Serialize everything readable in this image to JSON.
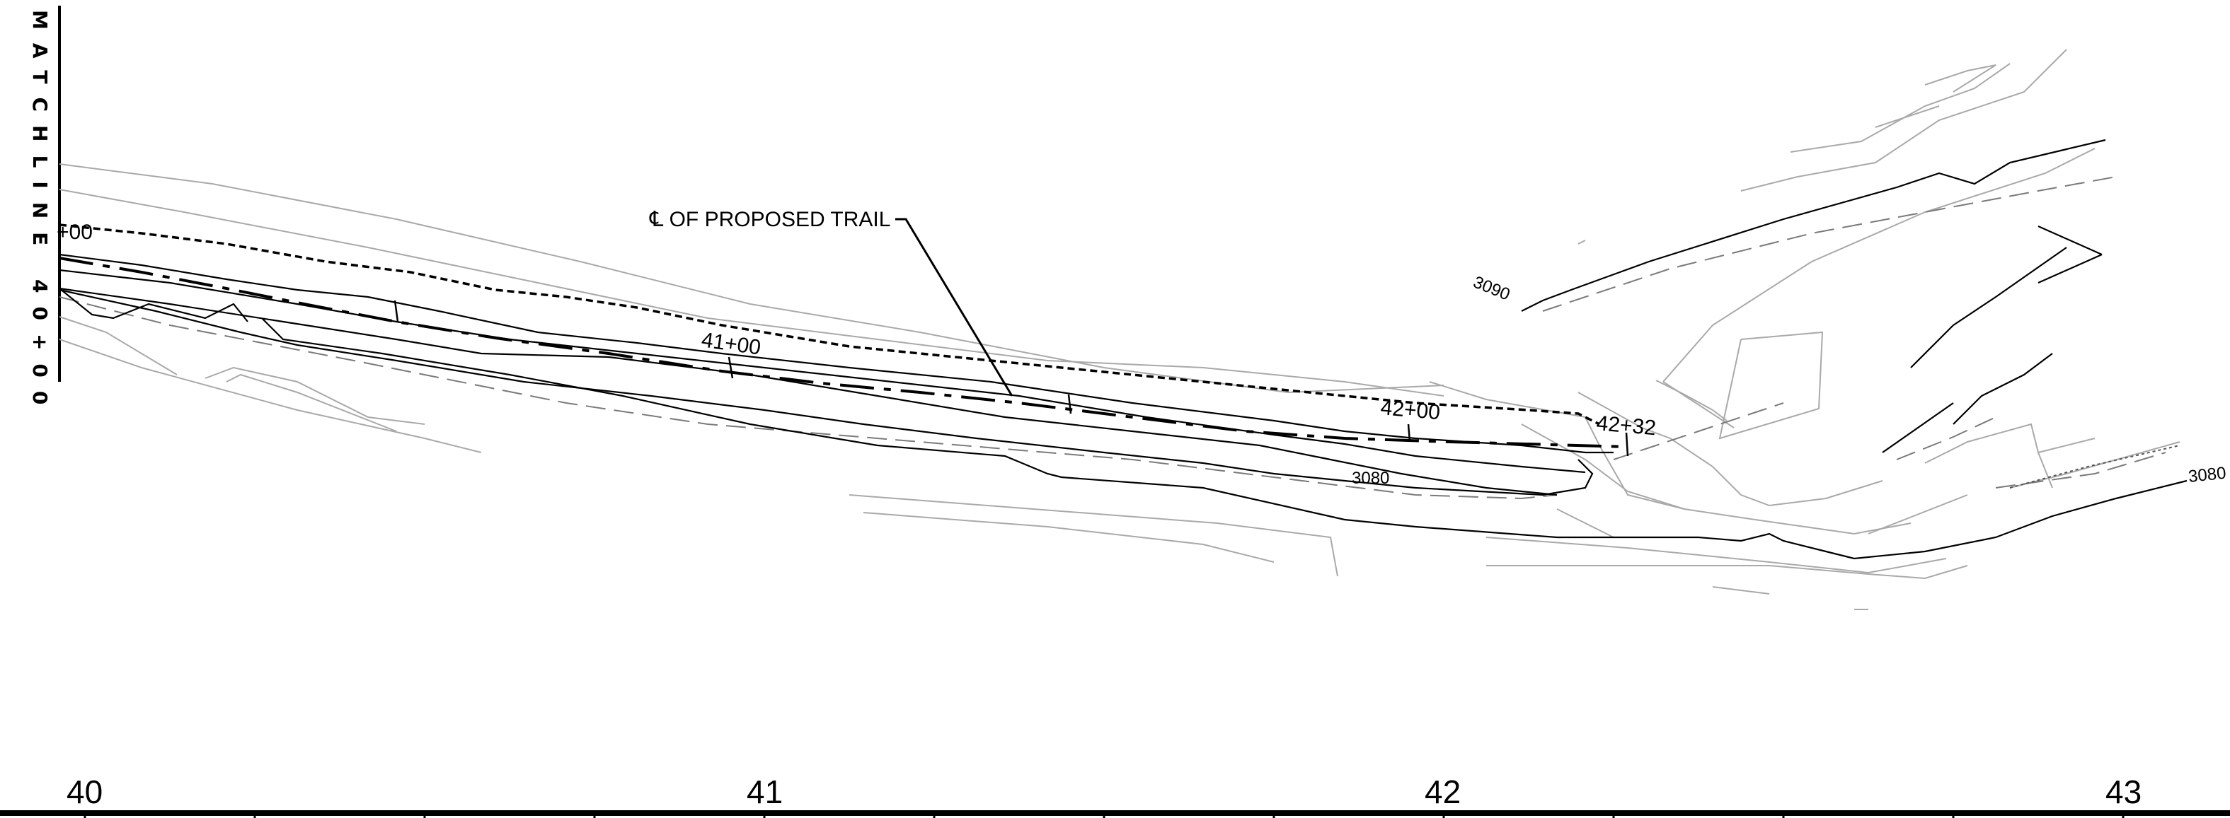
{
  "matchline": "MATCHLINE 40+00",
  "centerline_label": "℄ OF PROPOSED TRAIL",
  "stations": {
    "s4000": "+00",
    "s4100": "41+00",
    "s4200": "42+00",
    "s4232": "42+32"
  },
  "contours": {
    "c3090": "3090",
    "c3080_a": "3080",
    "c3080_b": "3080"
  },
  "station_axis": [
    "40",
    "41",
    "42",
    "43"
  ]
}
